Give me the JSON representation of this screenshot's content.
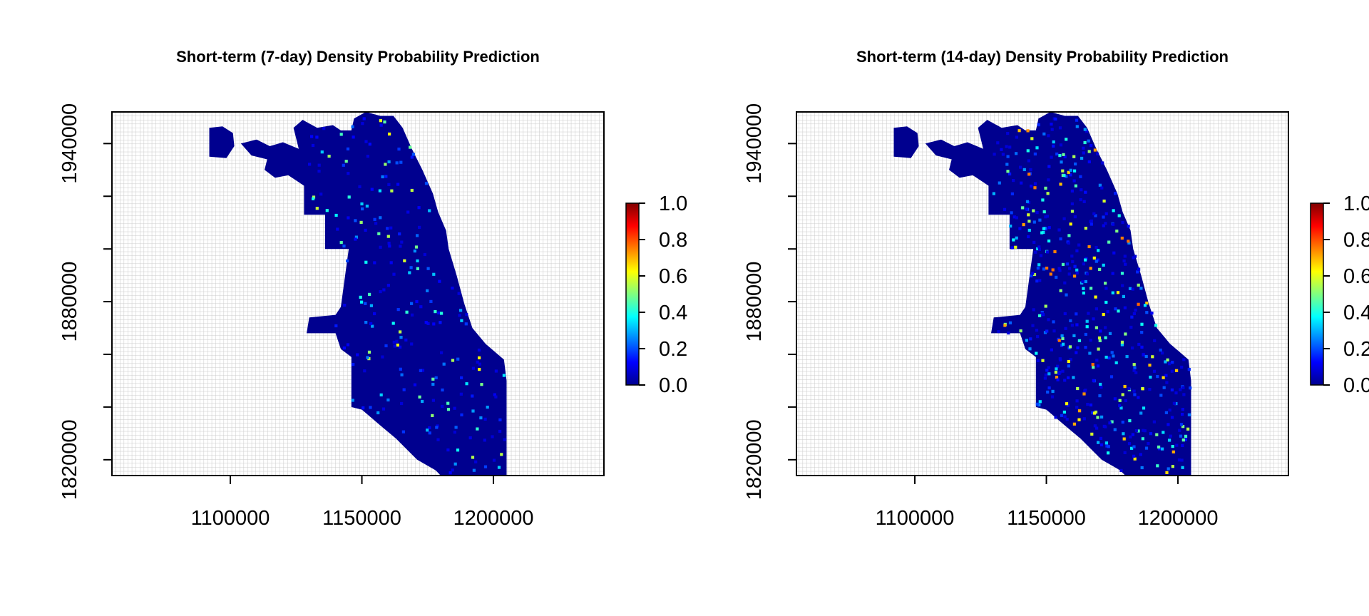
{
  "chart_data": [
    {
      "type": "heatmap",
      "title": "Short-term (7-day) Density Probability Prediction",
      "xlabel": "",
      "ylabel": "",
      "xlim": [
        1055000,
        1242000
      ],
      "ylim": [
        1814000,
        1952000
      ],
      "x_ticks": [
        1100000,
        1150000,
        1200000
      ],
      "x_tick_labels": [
        "1100000",
        "1150000",
        "1200000"
      ],
      "y_ticks": [
        1820000,
        1840000,
        1860000,
        1880000,
        1900000,
        1920000,
        1940000
      ],
      "y_tick_labels": [
        "1820000",
        "",
        "",
        "1880000",
        "",
        "",
        "1940000"
      ],
      "colorbar": {
        "range": [
          0.0,
          1.0
        ],
        "ticks": [
          "0.0",
          "0.2",
          "0.4",
          "0.6",
          "0.8",
          "1.0"
        ],
        "colors": [
          "#00008f",
          "#0000ff",
          "#0080ff",
          "#00ffff",
          "#80ff80",
          "#ffff00",
          "#ff8000",
          "#ff0000",
          "#800000"
        ]
      },
      "background_grid": true,
      "region_base_value": 0.0,
      "hotspot_count": 230,
      "hotspot_max": 0.55
    },
    {
      "type": "heatmap",
      "title": "Short-term (14-day) Density Probability Prediction",
      "xlabel": "",
      "ylabel": "",
      "xlim": [
        1055000,
        1242000
      ],
      "ylim": [
        1814000,
        1952000
      ],
      "x_ticks": [
        1100000,
        1150000,
        1200000
      ],
      "x_tick_labels": [
        "1100000",
        "1150000",
        "1200000"
      ],
      "y_ticks": [
        1820000,
        1840000,
        1860000,
        1880000,
        1900000,
        1920000,
        1940000
      ],
      "y_tick_labels": [
        "1820000",
        "",
        "",
        "1880000",
        "",
        "",
        "1940000"
      ],
      "colorbar": {
        "range": [
          0.0,
          1.0
        ],
        "ticks": [
          "0.0",
          "0.2",
          "0.4",
          "0.6",
          "0.8",
          "1.0"
        ],
        "colors": [
          "#00008f",
          "#0000ff",
          "#0080ff",
          "#00ffff",
          "#80ff80",
          "#ffff00",
          "#ff8000",
          "#ff0000",
          "#800000"
        ]
      },
      "background_grid": true,
      "region_base_value": 0.0,
      "hotspot_count": 520,
      "hotspot_max": 0.7
    }
  ],
  "region_outline": [
    [
      1092000,
      1946000
    ],
    [
      1097000,
      1946500
    ],
    [
      1101000,
      1944000
    ],
    [
      1101500,
      1939000
    ],
    [
      1098500,
      1934500
    ],
    [
      1092000,
      1935000
    ],
    [
      1092000,
      1946000
    ]
  ],
  "region_body": [
    [
      1104000,
      1940000
    ],
    [
      1110000,
      1941500
    ],
    [
      1115000,
      1939000
    ],
    [
      1120000,
      1940500
    ],
    [
      1126000,
      1938000
    ],
    [
      1124000,
      1946000
    ],
    [
      1127500,
      1949000
    ],
    [
      1133000,
      1946000
    ],
    [
      1139000,
      1947000
    ],
    [
      1142000,
      1945000
    ],
    [
      1146000,
      1945000
    ],
    [
      1147000,
      1949500
    ],
    [
      1151500,
      1952000
    ],
    [
      1157000,
      1950500
    ],
    [
      1162000,
      1950500
    ],
    [
      1165500,
      1946000
    ],
    [
      1169000,
      1938000
    ],
    [
      1173000,
      1930000
    ],
    [
      1177000,
      1921000
    ],
    [
      1179000,
      1914000
    ],
    [
      1182000,
      1907000
    ],
    [
      1183000,
      1900000
    ],
    [
      1186000,
      1890000
    ],
    [
      1189000,
      1879000
    ],
    [
      1192000,
      1870000
    ],
    [
      1197000,
      1864000
    ],
    [
      1204000,
      1858000
    ],
    [
      1205000,
      1850000
    ],
    [
      1205000,
      1814000
    ],
    [
      1180000,
      1814000
    ],
    [
      1178000,
      1816000
    ],
    [
      1171000,
      1820000
    ],
    [
      1163000,
      1828000
    ],
    [
      1157000,
      1833000
    ],
    [
      1150000,
      1839000
    ],
    [
      1146000,
      1840000
    ],
    [
      1146000,
      1859000
    ],
    [
      1142000,
      1862000
    ],
    [
      1140000,
      1868000
    ],
    [
      1129000,
      1868000
    ],
    [
      1130000,
      1874000
    ],
    [
      1140000,
      1875000
    ],
    [
      1142000,
      1878000
    ],
    [
      1145000,
      1900000
    ],
    [
      1136000,
      1900000
    ],
    [
      1136000,
      1913000
    ],
    [
      1128000,
      1913000
    ],
    [
      1128000,
      1924000
    ],
    [
      1122000,
      1928000
    ],
    [
      1117000,
      1927000
    ],
    [
      1113000,
      1930000
    ],
    [
      1114000,
      1934000
    ],
    [
      1108000,
      1935500
    ],
    [
      1104000,
      1940000
    ]
  ]
}
